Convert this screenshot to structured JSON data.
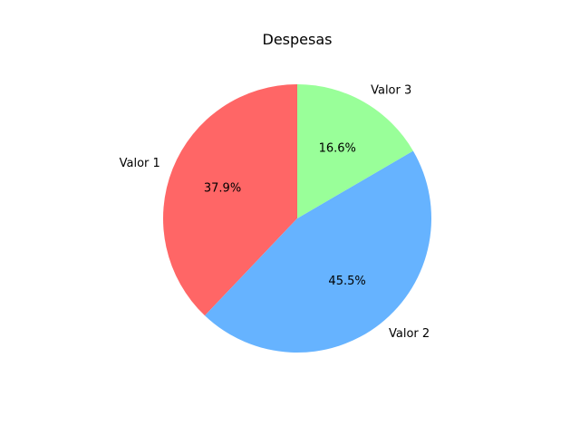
{
  "chart_data": {
    "type": "pie",
    "title": "Despesas",
    "start_angle_deg": 90,
    "direction": "counterclockwise",
    "slices": [
      {
        "label": "Valor 1",
        "value": 37.9,
        "pct_label": "37.9%",
        "color": "#ff6666"
      },
      {
        "label": "Valor 2",
        "value": 45.5,
        "pct_label": "45.5%",
        "color": "#66b3ff"
      },
      {
        "label": "Valor 3",
        "value": 16.6,
        "pct_label": "16.6%",
        "color": "#99ff99"
      }
    ],
    "legend": "none"
  }
}
